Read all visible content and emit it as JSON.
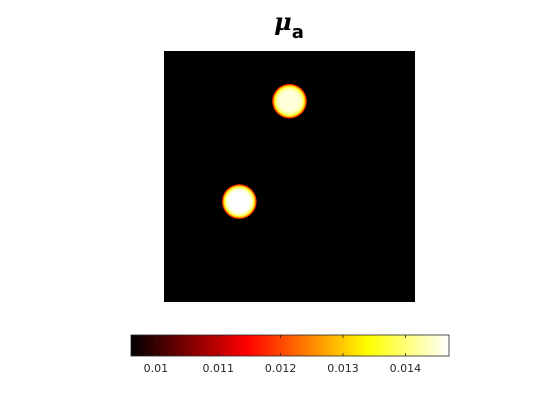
{
  "chart_data": {
    "type": "heatmap",
    "title": {
      "symbol": "μ",
      "subscript": "a"
    },
    "colormap": "hot",
    "colors": {
      "background": "#000000",
      "low": "#000000",
      "high": "#ffffff",
      "tick_text": "#262626"
    },
    "image": {
      "background_value": 0.0096,
      "inclusions": [
        {
          "label": "upper inclusion",
          "center": [
            0.5,
            0.2
          ],
          "radius": 0.065,
          "peak_value": 0.0145
        },
        {
          "label": "lower inclusion",
          "center": [
            0.3,
            0.6
          ],
          "radius": 0.065,
          "peak_value": 0.0147
        }
      ]
    },
    "colorbar": {
      "orientation": "horizontal",
      "placement": "bottom",
      "range": [
        0.0096,
        0.0147
      ],
      "ticks": [
        0.01,
        0.011,
        0.012,
        0.013,
        0.014
      ],
      "tick_labels": [
        "0.01",
        "0.011",
        "0.012",
        "0.013",
        "0.014"
      ]
    }
  }
}
